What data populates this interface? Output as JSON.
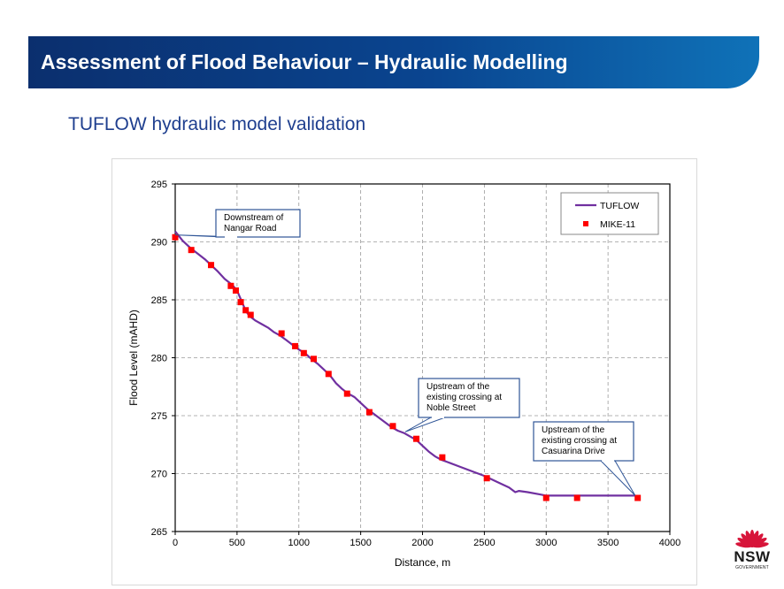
{
  "slide": {
    "title": "Assessment of Flood Behaviour – Hydraulic Modelling",
    "subtitle": "TUFLOW hydraulic model validation"
  },
  "logo": {
    "word": "NSW",
    "sub": "GOVERNMENT",
    "icon": "waratah-icon",
    "color": "#d7153a"
  },
  "chart_data": {
    "type": "line",
    "xlabel": "Distance, m",
    "ylabel": "Flood Level (mAHD)",
    "xlim": [
      0,
      4000
    ],
    "ylim": [
      265,
      295
    ],
    "xticks": [
      0,
      500,
      1000,
      1500,
      2000,
      2500,
      3000,
      3500,
      4000
    ],
    "yticks": [
      265,
      270,
      275,
      280,
      285,
      290,
      295
    ],
    "grid": true,
    "legend": "top-right",
    "series": [
      {
        "name": "TUFLOW",
        "kind": "line",
        "color": "#7030a0",
        "x": [
          0,
          60,
          120,
          180,
          240,
          290,
          340,
          400,
          460,
          500,
          520,
          540,
          560,
          580,
          600,
          650,
          700,
          750,
          800,
          850,
          900,
          950,
          1000,
          1050,
          1100,
          1150,
          1200,
          1250,
          1300,
          1350,
          1400,
          1450,
          1500,
          1550,
          1600,
          1650,
          1700,
          1750,
          1800,
          1850,
          1900,
          1950,
          2000,
          2050,
          2100,
          2150,
          2200,
          2300,
          2400,
          2500,
          2600,
          2700,
          2750,
          2780,
          2850,
          2950,
          3000,
          3100,
          3200,
          3300,
          3400,
          3500,
          3600,
          3720
        ],
        "y": [
          290.9,
          290.1,
          289.5,
          289.0,
          288.5,
          288.0,
          287.5,
          286.8,
          286.3,
          285.8,
          285.3,
          284.8,
          284.3,
          283.9,
          283.6,
          283.2,
          282.9,
          282.6,
          282.2,
          281.9,
          281.5,
          281.1,
          280.7,
          280.4,
          279.9,
          279.5,
          279.0,
          278.5,
          277.8,
          277.3,
          276.9,
          276.6,
          276.1,
          275.6,
          275.2,
          274.8,
          274.4,
          274.0,
          273.7,
          273.5,
          273.2,
          272.9,
          272.4,
          271.9,
          271.5,
          271.2,
          271.0,
          270.6,
          270.2,
          269.8,
          269.3,
          268.8,
          268.4,
          268.5,
          268.4,
          268.2,
          268.1,
          268.1,
          268.1,
          268.1,
          268.1,
          268.1,
          268.1,
          268.1
        ]
      },
      {
        "name": "MIKE-11",
        "kind": "scatter",
        "color": "#ff0000",
        "x": [
          0,
          130,
          290,
          450,
          490,
          530,
          570,
          610,
          860,
          970,
          1040,
          1120,
          1240,
          1390,
          1570,
          1760,
          1950,
          2160,
          2520,
          3000,
          3250,
          3740
        ],
        "y": [
          290.4,
          289.3,
          288.0,
          286.2,
          285.8,
          284.8,
          284.1,
          283.7,
          282.1,
          281.0,
          280.4,
          279.9,
          278.6,
          276.9,
          275.3,
          274.1,
          273.0,
          271.4,
          269.6,
          267.9,
          267.9,
          267.9
        ]
      }
    ],
    "annotations": [
      {
        "text": [
          "Downstream of",
          "Nangar Road"
        ],
        "x": 0,
        "y": 290.6
      },
      {
        "text": [
          "Upstream of the",
          "existing crossing at",
          "Noble Street"
        ],
        "x": 1860,
        "y": 273.6
      },
      {
        "text": [
          "Upstream of the",
          "existing crossing at",
          "Casuarina Drive"
        ],
        "x": 3720,
        "y": 268.1
      }
    ]
  }
}
